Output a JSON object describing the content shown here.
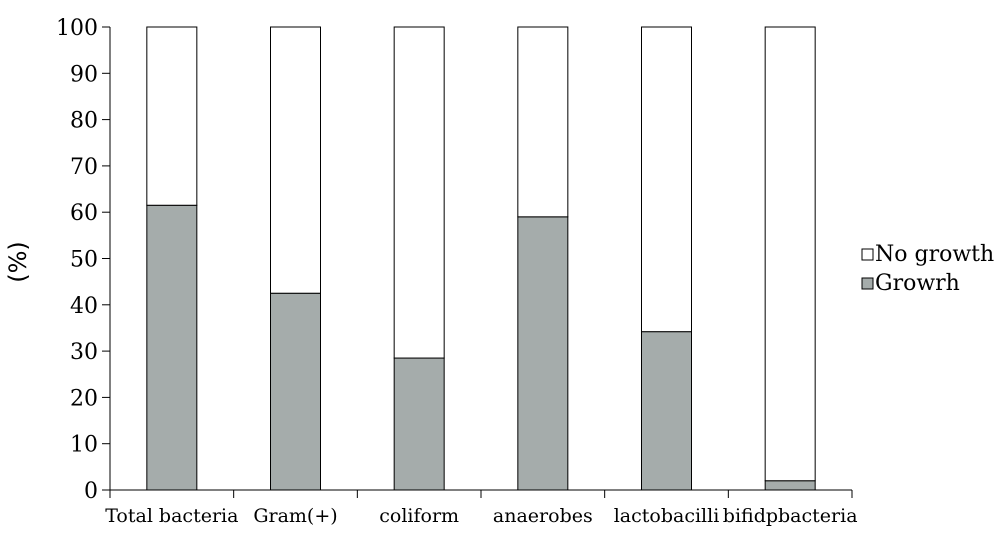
{
  "chart_data": {
    "type": "bar",
    "stacked": true,
    "categories": [
      "Total bacteria",
      "Gram(+)",
      "coliform",
      "anaerobes",
      "lactobacilli",
      "bifidpbacteria"
    ],
    "series": [
      {
        "name": "Growrh",
        "values": [
          61.5,
          42.5,
          28.5,
          59.0,
          34.2,
          2.0
        ],
        "color": "#a5acab"
      },
      {
        "name": "No growth",
        "values": [
          38.5,
          57.5,
          71.5,
          41.0,
          65.8,
          98.0
        ],
        "color": "#ffffff"
      }
    ],
    "ylabel": "(%)",
    "xlabel": "",
    "title": "",
    "ylim": [
      0,
      100
    ],
    "yticks": [
      0,
      10,
      20,
      30,
      40,
      50,
      60,
      70,
      80,
      90,
      100
    ],
    "grid": false,
    "legend": {
      "position": "right",
      "entries": [
        "No growth",
        "Growrh"
      ]
    }
  }
}
